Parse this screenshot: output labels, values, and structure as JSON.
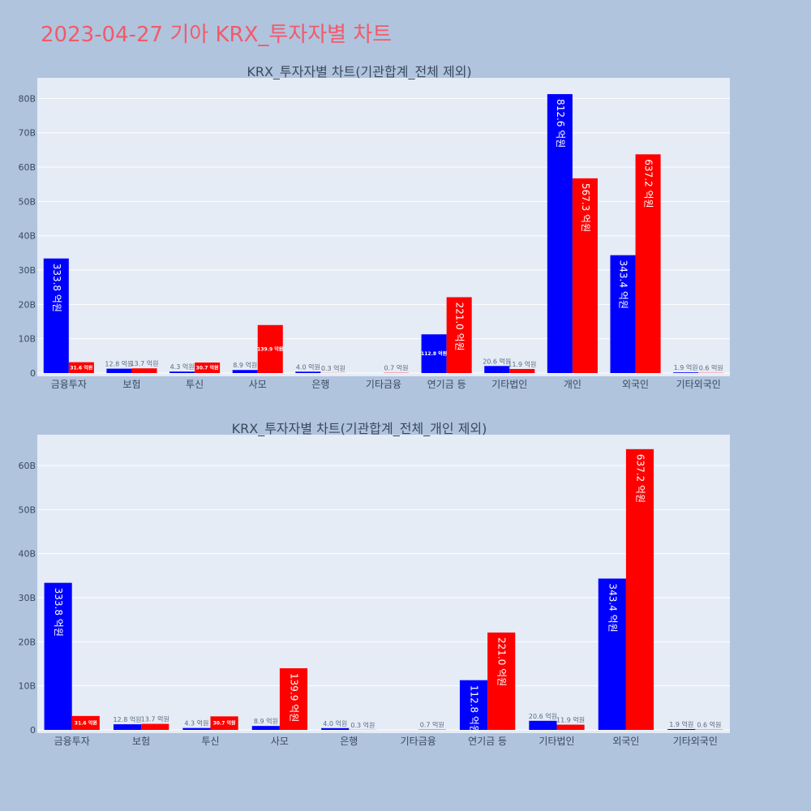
{
  "title": "2023-04-27 기아 KRX_투자자별 차트",
  "colors": {
    "buy": "#0000ff",
    "sell": "#ff0000",
    "plot_bg": "#e5ecf6",
    "page_bg": "#b0c4de",
    "title": "#f25a6a"
  },
  "chart_data": [
    {
      "type": "bar",
      "title": "KRX_투자자별 차트(기관합계_전체 제외)",
      "categories": [
        "금융투자",
        "보험",
        "투신",
        "사모",
        "은행",
        "기타금융",
        "연기금 등",
        "기타법인",
        "개인",
        "외국인",
        "기타외국인"
      ],
      "series": [
        {
          "values": [
            33.38,
            1.28,
            0.43,
            0.89,
            0.4,
            0,
            11.28,
            2.06,
            81.26,
            34.34,
            0.19
          ],
          "labels": [
            "333.8 억원",
            "12.8 억원",
            "4.3 억원",
            "8.9 억원",
            "4.0 억원",
            "",
            "112.8 억원",
            "20.6 억원",
            "812.6 억원",
            "343.4 억원",
            "1.9 억원"
          ]
        },
        {
          "values": [
            3.16,
            1.37,
            3.07,
            13.99,
            0.03,
            0.07,
            22.1,
            1.19,
            56.73,
            63.72,
            0.06
          ],
          "labels": [
            "31.6 억원",
            "13.7 억원",
            "30.7 억원",
            "139.9 억원",
            "0.3 억원",
            "0.7 억원",
            "221.0 억원",
            "11.9 억원",
            "567.3 억원",
            "637.2 억원",
            "0.6 억원"
          ]
        }
      ],
      "yticks": [
        "0",
        "10B",
        "20B",
        "30B",
        "40B",
        "50B",
        "60B",
        "70B",
        "80B"
      ],
      "ylim": [
        0,
        86
      ],
      "grid": true
    },
    {
      "type": "bar",
      "title": "KRX_투자자별 차트(기관합계_전체_개인 제외)",
      "categories": [
        "금융투자",
        "보험",
        "투신",
        "사모",
        "은행",
        "기타금융",
        "연기금 등",
        "기타법인",
        "외국인",
        "기타외국인"
      ],
      "series": [
        {
          "values": [
            33.38,
            1.28,
            0.43,
            0.89,
            0.4,
            0,
            11.28,
            2.06,
            34.34,
            0.19
          ],
          "labels": [
            "333.8 억원",
            "12.8 억원",
            "4.3 억원",
            "8.9 억원",
            "4.0 억원",
            "",
            "112.8 억원",
            "20.6 억원",
            "343.4 억원",
            "1.9 억원"
          ]
        },
        {
          "values": [
            3.16,
            1.37,
            3.07,
            13.99,
            0.03,
            0.07,
            22.1,
            1.19,
            63.72,
            0.06
          ],
          "labels": [
            "31.6 억원",
            "13.7 억원",
            "30.7 억원",
            "139.9 억원",
            "0.3 억원",
            "0.7 억원",
            "221.0 억원",
            "11.9 억원",
            "637.2 억원",
            "0.6 억원"
          ]
        }
      ],
      "yticks": [
        "0",
        "10B",
        "20B",
        "30B",
        "40B",
        "50B",
        "60B"
      ],
      "ylim": [
        0,
        67
      ],
      "grid": true
    }
  ]
}
